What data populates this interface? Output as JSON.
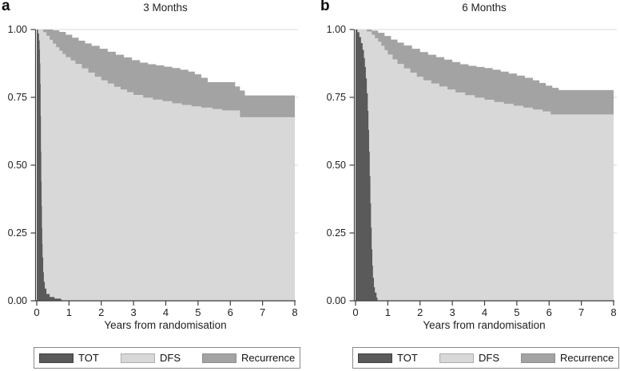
{
  "figure": {
    "panels": [
      {
        "letter": "a",
        "title": "3 Months",
        "xlabel": "Years from randomisation"
      },
      {
        "letter": "b",
        "title": "6 Months",
        "xlabel": "Years from randomisation"
      }
    ],
    "colors": {
      "tot": "#5a5a5a",
      "dfs": "#d8d8d8",
      "recurrence": "#a3a3a3",
      "grid": "#d9d9d9",
      "axis": "#3d3d3d",
      "legend_border": "#8a8a8a"
    }
  },
  "chart_data": [
    {
      "type": "area",
      "panel": "a",
      "title": "3 Months",
      "xlabel": "Years from randomisation",
      "ylabel": "",
      "xlim": [
        0,
        8
      ],
      "ylim": [
        0,
        1
      ],
      "x_ticks": [
        0,
        1,
        2,
        3,
        4,
        5,
        6,
        7,
        8
      ],
      "y_ticks": [
        0,
        0.25,
        0.5,
        0.75,
        1
      ],
      "y_tick_labels": [
        "0.00",
        "0.25",
        "0.50",
        "0.75",
        "1.00"
      ],
      "grid": "horizontal",
      "legend_position": "bottom-box",
      "legend": [
        {
          "label": "TOT",
          "fill": "#5a5a5a",
          "border": "#3f3f3f"
        },
        {
          "label": "DFS",
          "fill": "#d8d8d8",
          "border": "#adadad"
        },
        {
          "label": "Recurrence",
          "fill": "#a3a3a3",
          "border": "#8c8c8c"
        }
      ],
      "series": [
        {
          "name": "TOT",
          "fill": "#5a5a5a",
          "points": [
            [
              0,
              1
            ],
            [
              0.04,
              0.985
            ],
            [
              0.07,
              0.96
            ],
            [
              0.09,
              0.925
            ],
            [
              0.1,
              0.875
            ],
            [
              0.11,
              0.8
            ],
            [
              0.12,
              0.68
            ],
            [
              0.13,
              0.55
            ],
            [
              0.14,
              0.44
            ],
            [
              0.15,
              0.35
            ],
            [
              0.16,
              0.27
            ],
            [
              0.17,
              0.21
            ],
            [
              0.18,
              0.16
            ],
            [
              0.2,
              0.105
            ],
            [
              0.22,
              0.07
            ],
            [
              0.25,
              0.045
            ],
            [
              0.3,
              0.025
            ],
            [
              0.4,
              0.014
            ],
            [
              0.55,
              0.008
            ],
            [
              0.75,
              0.004
            ],
            [
              0.78,
              0
            ]
          ]
        },
        {
          "name": "DFS",
          "fill": "#d8d8d8",
          "points": [
            [
              0,
              1
            ],
            [
              0.2,
              0.99
            ],
            [
              0.3,
              0.977
            ],
            [
              0.4,
              0.962
            ],
            [
              0.5,
              0.948
            ],
            [
              0.6,
              0.935
            ],
            [
              0.7,
              0.922
            ],
            [
              0.8,
              0.91
            ],
            [
              0.9,
              0.898
            ],
            [
              1.05,
              0.886
            ],
            [
              1.2,
              0.873
            ],
            [
              1.4,
              0.857
            ],
            [
              1.6,
              0.841
            ],
            [
              1.8,
              0.826
            ],
            [
              2,
              0.813
            ],
            [
              2.2,
              0.801
            ],
            [
              2.4,
              0.789
            ],
            [
              2.6,
              0.779
            ],
            [
              2.8,
              0.769
            ],
            [
              3,
              0.759
            ],
            [
              3.3,
              0.749
            ],
            [
              3.6,
              0.742
            ],
            [
              3.9,
              0.736
            ],
            [
              4.2,
              0.728
            ],
            [
              4.5,
              0.722
            ],
            [
              4.8,
              0.717
            ],
            [
              5.1,
              0.712
            ],
            [
              5.45,
              0.707
            ],
            [
              5.75,
              0.702
            ],
            [
              6.3,
              0.677
            ],
            [
              8,
              0.677
            ]
          ]
        },
        {
          "name": "Recurrence",
          "fill": "#a3a3a3",
          "points": [
            [
              0,
              1
            ],
            [
              0.5,
              0.997
            ],
            [
              0.7,
              0.991
            ],
            [
              0.9,
              0.981
            ],
            [
              1.1,
              0.97
            ],
            [
              1.3,
              0.959
            ],
            [
              1.5,
              0.949
            ],
            [
              1.7,
              0.94
            ],
            [
              1.95,
              0.929
            ],
            [
              2.2,
              0.918
            ],
            [
              2.45,
              0.907
            ],
            [
              2.7,
              0.897
            ],
            [
              2.95,
              0.887
            ],
            [
              3.2,
              0.878
            ],
            [
              3.45,
              0.872
            ],
            [
              3.7,
              0.868
            ],
            [
              3.95,
              0.863
            ],
            [
              4.2,
              0.858
            ],
            [
              4.45,
              0.852
            ],
            [
              4.7,
              0.845
            ],
            [
              4.9,
              0.835
            ],
            [
              5.1,
              0.822
            ],
            [
              5.3,
              0.806
            ],
            [
              6.05,
              0.806
            ],
            [
              6.15,
              0.79
            ],
            [
              6.3,
              0.775
            ],
            [
              6.45,
              0.757
            ],
            [
              8,
              0.757
            ]
          ]
        }
      ]
    },
    {
      "type": "area",
      "panel": "b",
      "title": "6 Months",
      "xlabel": "Years from randomisation",
      "ylabel": "",
      "xlim": [
        0,
        8
      ],
      "ylim": [
        0,
        1
      ],
      "x_ticks": [
        0,
        1,
        2,
        3,
        4,
        5,
        6,
        7,
        8
      ],
      "y_ticks": [
        0,
        0.25,
        0.5,
        0.75,
        1
      ],
      "y_tick_labels": [
        "0.00",
        "0.25",
        "0.50",
        "0.75",
        "1.00"
      ],
      "grid": "horizontal",
      "legend_position": "bottom-box",
      "legend": [
        {
          "label": "TOT",
          "fill": "#5a5a5a",
          "border": "#3f3f3f"
        },
        {
          "label": "DFS",
          "fill": "#d8d8d8",
          "border": "#adadad"
        },
        {
          "label": "Recurrence",
          "fill": "#a3a3a3",
          "border": "#8c8c8c"
        }
      ],
      "series": [
        {
          "name": "TOT",
          "fill": "#5a5a5a",
          "points": [
            [
              0,
              1
            ],
            [
              0.06,
              0.99
            ],
            [
              0.12,
              0.972
            ],
            [
              0.17,
              0.95
            ],
            [
              0.22,
              0.925
            ],
            [
              0.26,
              0.895
            ],
            [
              0.29,
              0.862
            ],
            [
              0.32,
              0.82
            ],
            [
              0.35,
              0.765
            ],
            [
              0.38,
              0.7
            ],
            [
              0.4,
              0.63
            ],
            [
              0.42,
              0.55
            ],
            [
              0.44,
              0.46
            ],
            [
              0.46,
              0.36
            ],
            [
              0.48,
              0.27
            ],
            [
              0.5,
              0.19
            ],
            [
              0.52,
              0.13
            ],
            [
              0.54,
              0.085
            ],
            [
              0.57,
              0.05
            ],
            [
              0.6,
              0.03
            ],
            [
              0.65,
              0.012
            ],
            [
              0.68,
              0
            ]
          ]
        },
        {
          "name": "DFS",
          "fill": "#d8d8d8",
          "points": [
            [
              0,
              1
            ],
            [
              0.35,
              0.993
            ],
            [
              0.5,
              0.981
            ],
            [
              0.6,
              0.968
            ],
            [
              0.7,
              0.955
            ],
            [
              0.8,
              0.94
            ],
            [
              0.9,
              0.924
            ],
            [
              1,
              0.908
            ],
            [
              1.15,
              0.89
            ],
            [
              1.3,
              0.873
            ],
            [
              1.5,
              0.857
            ],
            [
              1.7,
              0.841
            ],
            [
              1.9,
              0.826
            ],
            [
              2.1,
              0.813
            ],
            [
              2.35,
              0.801
            ],
            [
              2.6,
              0.79
            ],
            [
              2.85,
              0.779
            ],
            [
              3.1,
              0.768
            ],
            [
              3.4,
              0.758
            ],
            [
              3.7,
              0.749
            ],
            [
              4,
              0.741
            ],
            [
              4.3,
              0.733
            ],
            [
              4.6,
              0.726
            ],
            [
              4.9,
              0.719
            ],
            [
              5.2,
              0.712
            ],
            [
              5.5,
              0.705
            ],
            [
              5.8,
              0.698
            ],
            [
              6.05,
              0.687
            ],
            [
              8,
              0.687
            ]
          ]
        },
        {
          "name": "Recurrence",
          "fill": "#a3a3a3",
          "points": [
            [
              0,
              1
            ],
            [
              0.5,
              0.996
            ],
            [
              0.7,
              0.988
            ],
            [
              0.9,
              0.976
            ],
            [
              1.1,
              0.963
            ],
            [
              1.3,
              0.952
            ],
            [
              1.5,
              0.941
            ],
            [
              1.75,
              0.929
            ],
            [
              2,
              0.917
            ],
            [
              2.25,
              0.907
            ],
            [
              2.5,
              0.898
            ],
            [
              2.75,
              0.889
            ],
            [
              3,
              0.88
            ],
            [
              3.25,
              0.872
            ],
            [
              3.5,
              0.866
            ],
            [
              3.75,
              0.862
            ],
            [
              4,
              0.858
            ],
            [
              4.25,
              0.852
            ],
            [
              4.5,
              0.845
            ],
            [
              4.75,
              0.838
            ],
            [
              5,
              0.83
            ],
            [
              5.25,
              0.822
            ],
            [
              5.5,
              0.813
            ],
            [
              5.7,
              0.803
            ],
            [
              5.9,
              0.793
            ],
            [
              6.1,
              0.785
            ],
            [
              6.3,
              0.777
            ],
            [
              8,
              0.777
            ]
          ]
        }
      ]
    }
  ]
}
